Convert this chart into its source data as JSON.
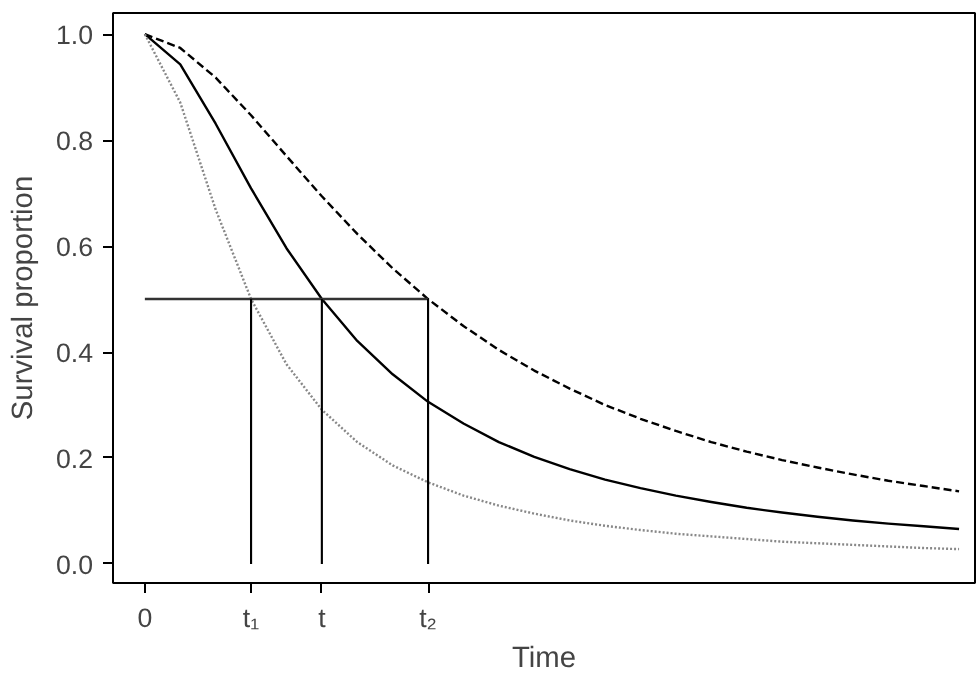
{
  "chart_data": {
    "type": "line",
    "xlabel": "Time",
    "ylabel": "Survival proportion",
    "categories": [
      "0",
      null,
      null,
      "t₁",
      null,
      "t",
      null,
      null,
      "t₂",
      null,
      null,
      null,
      null,
      null,
      null,
      null,
      null,
      null,
      null,
      null,
      null,
      null,
      null,
      null
    ],
    "ylim": [
      -0.036,
      1.04
    ],
    "yticks": [
      {
        "value": 0,
        "label": "0.0"
      },
      {
        "value": 0.2,
        "label": "0.2"
      },
      {
        "value": 0.4,
        "label": "0.4"
      },
      {
        "value": 0.6,
        "label": "0.6"
      },
      {
        "value": 0.8,
        "label": "0.8"
      },
      {
        "value": 1,
        "label": "1.0"
      }
    ],
    "grid": false,
    "marker": "none",
    "series": [
      {
        "color": "#000000",
        "line_style": "dashed",
        "values": [
          1.0,
          0.974,
          0.918,
          0.847,
          0.77,
          0.694,
          0.623,
          0.558,
          0.5,
          0.449,
          0.404,
          0.365,
          0.331,
          0.3,
          0.274,
          0.251,
          0.23,
          0.212,
          0.196,
          0.182,
          0.169,
          0.157,
          0.147,
          0.137
        ]
      },
      {
        "color": "#000000",
        "line_style": "solid",
        "values": [
          1.0,
          0.943,
          0.831,
          0.709,
          0.596,
          0.5,
          0.421,
          0.358,
          0.306,
          0.265,
          0.23,
          0.202,
          0.179,
          0.159,
          0.143,
          0.129,
          0.117,
          0.106,
          0.097,
          0.089,
          0.082,
          0.076,
          0.071,
          0.066
        ]
      },
      {
        "color": "#888888",
        "line_style": "dotted",
        "values": [
          1.0,
          0.871,
          0.669,
          0.5,
          0.377,
          0.291,
          0.23,
          0.186,
          0.154,
          0.129,
          0.11,
          0.095,
          0.082,
          0.072,
          0.064,
          0.057,
          0.052,
          0.047,
          0.042,
          0.039,
          0.036,
          0.033,
          0.03,
          0.028
        ]
      },
      {
        "color": "#333333",
        "line_style": "solid",
        "values": [
          0.5,
          0.5,
          0.5,
          0.5,
          0.5,
          0.5,
          0.5,
          0.5,
          0.5,
          null,
          null,
          null,
          null,
          null,
          null,
          null,
          null,
          null,
          null,
          null,
          null,
          null,
          null,
          null
        ]
      },
      {
        "type": "bar",
        "color": "#000000",
        "values": [
          null,
          null,
          null,
          0.5,
          null,
          0.5,
          null,
          null,
          0.5,
          null,
          null,
          null,
          null,
          null,
          null,
          null,
          null,
          null,
          null,
          null,
          null,
          null,
          null,
          null
        ]
      }
    ]
  }
}
